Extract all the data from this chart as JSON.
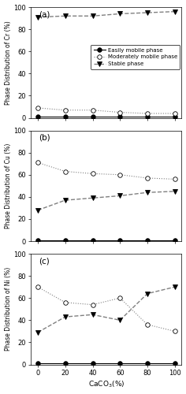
{
  "x": [
    0,
    20,
    40,
    60,
    80,
    100
  ],
  "cr_easy": [
    1,
    1,
    1,
    1,
    1,
    1
  ],
  "cr_moderate": [
    9,
    7,
    7,
    5,
    4,
    4
  ],
  "cr_stable": [
    91,
    92,
    92,
    94,
    95,
    96
  ],
  "cu_easy": [
    1,
    1,
    1,
    1,
    1,
    1
  ],
  "cu_moderate": [
    71,
    63,
    61,
    60,
    57,
    56
  ],
  "cu_stable": [
    28,
    37,
    39,
    41,
    44,
    45
  ],
  "ni_easy": [
    1,
    1,
    1,
    1,
    1,
    1
  ],
  "ni_moderate": [
    70,
    56,
    54,
    60,
    36,
    30
  ],
  "ni_stable": [
    29,
    43,
    45,
    40,
    64,
    70
  ],
  "xlabel": "CaCO$_3$(%)",
  "ylabels": [
    "Phase Distribution of Cr (%)",
    "Phase Distribution of Cu (%)",
    "Phase Distribution of Ni (%)"
  ],
  "subtitles": [
    "(a)",
    "(b)",
    "(c)"
  ],
  "legend_labels": [
    "Easily mobile phase",
    "Moderately mobile phase",
    "Stable phase"
  ],
  "xlim": [
    -5,
    105
  ],
  "ylim": [
    0,
    100
  ],
  "xticks": [
    0,
    20,
    40,
    60,
    80,
    100
  ],
  "yticks": [
    0,
    20,
    40,
    60,
    80,
    100
  ],
  "easy_color": "black",
  "moderate_color": "gray",
  "stable_color": "gray",
  "easy_marker": "o",
  "moderate_marker": "o",
  "stable_marker": "v",
  "easy_linestyle": "-",
  "moderate_linestyle": ":",
  "stable_linestyle": "--",
  "easy_markerfacecolor": "black",
  "moderate_markerfacecolor": "white",
  "stable_markerfacecolor": "black",
  "linewidth_easy": 0.8,
  "linewidth_moderate": 0.8,
  "linewidth_stable": 1.0,
  "markersize": 4
}
